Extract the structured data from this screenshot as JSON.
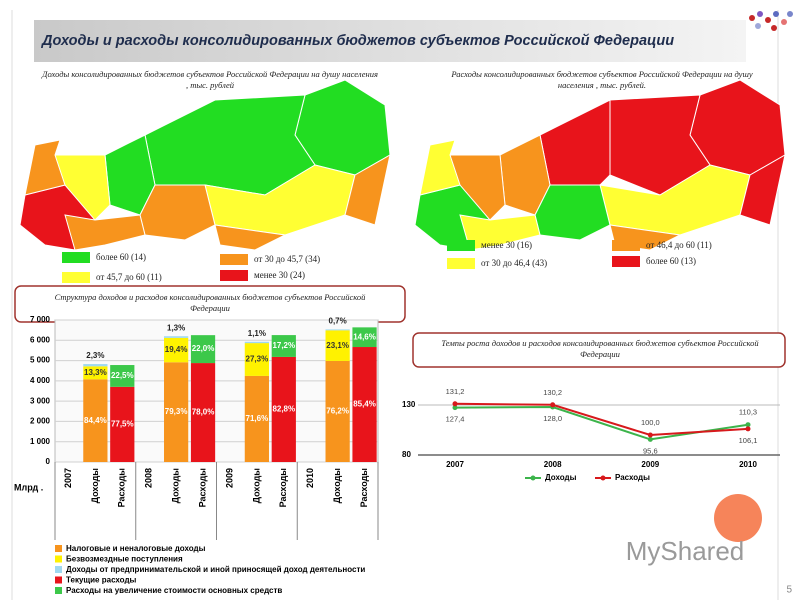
{
  "header": {
    "title": "Доходы и расходы консолидированных бюджетов субъектов Российской Федерации"
  },
  "maps": [
    {
      "title": "Доходы консолидированных бюджетов субъектов Российской Федерации на душу населения , тыс. рублей",
      "legend": [
        {
          "label": "более 60 (14)",
          "color": "#22dd22"
        },
        {
          "label": "от 45,7 до 60 (11)",
          "color": "#ffff33"
        },
        {
          "label": "от 30 до 45,7 (34)",
          "color": "#f7941d"
        },
        {
          "label": "менее 30 (24)",
          "color": "#e8141b"
        }
      ]
    },
    {
      "title": "Расходы консолидированных бюджетов субъектов Российской Федерации на душу населения , тыс. рублей.",
      "legend": [
        {
          "label": "менее 30 (16)",
          "color": "#22dd22"
        },
        {
          "label": "от 30 до 46,4 (43)",
          "color": "#ffff33"
        },
        {
          "label": "от 46,4 до 60 (11)",
          "color": "#f7941d"
        },
        {
          "label": "более 60 (13)",
          "color": "#e8141b"
        }
      ]
    }
  ],
  "panels": {
    "structure_title": "Структура доходов и расходов консолидированных бюджетов субъектов Российской Федерации",
    "growth_title": "Темпы роста доходов и расходов консолидированных бюджетов субъектов Российской Федерации"
  },
  "page_number": "5",
  "watermark": "MyShared",
  "chart_data": [
    {
      "type": "bar",
      "stacked": true,
      "y_label": "Млрд .",
      "groups": [
        "2007",
        "2008",
        "2009",
        "2010"
      ],
      "categories": [
        "Доходы",
        "Расходы",
        "Доходы",
        "Расходы",
        "Доходы",
        "Расходы",
        "Доходы",
        "Расходы"
      ],
      "ylim": [
        0,
        7000
      ],
      "yticks": [
        0,
        {
          "value": 1000,
          "label": "1 000"
        },
        {
          "value": 2000,
          "label": "2 000"
        },
        {
          "value": 3000,
          "label": "3 000"
        },
        {
          "value": 4000,
          "label": "4 000"
        },
        {
          "value": 5000,
          "label": "5 000"
        },
        {
          "value": 6000,
          "label": "6 000"
        },
        {
          "value": 7000,
          "label": "7 000"
        }
      ],
      "grid": true,
      "series": [
        {
          "name": "Налоговые и неналоговые доходы",
          "color": "#f7941d",
          "values": [
            4075,
            null,
            4916,
            null,
            4243,
            null,
            4981,
            null
          ],
          "labels": [
            "84,4%",
            null,
            "79,3%",
            null,
            "71,6%",
            null,
            "76,2%",
            null
          ]
        },
        {
          "name": "Безвозмездные поступления",
          "color": "#fff200",
          "values": [
            642,
            null,
            1203,
            null,
            1618,
            null,
            1510,
            null
          ],
          "labels": [
            "13,3%",
            null,
            "19,4%",
            null,
            "27,3%",
            null,
            "23,1%",
            null
          ]
        },
        {
          "name": "Доходы от предпринимательской и иной приносящей доход деятельности",
          "color": "#9fd8f0",
          "values": [
            111,
            null,
            81,
            null,
            65,
            null,
            46,
            null
          ],
          "labels": [
            "2,3%",
            null,
            "1,3%",
            null,
            "1,1%",
            null,
            "0,7%",
            null
          ]
        },
        {
          "name": "Текущие расходы",
          "color": "#e8141b",
          "values": [
            null,
            3705,
            null,
            4877,
            null,
            5180,
            null,
            5668
          ],
          "labels": [
            null,
            "77,5%",
            null,
            "78,0%",
            null,
            "82,8%",
            null,
            "85,4%"
          ]
        },
        {
          "name": "Расходы на увеличение стоимости основных средств",
          "color": "#3cc84a",
          "values": [
            null,
            1075,
            null,
            1376,
            null,
            1076,
            null,
            969
          ],
          "labels": [
            null,
            "22,5%",
            null,
            "22,0%",
            null,
            "17,2%",
            null,
            "14,6%"
          ]
        }
      ]
    },
    {
      "type": "line",
      "categories": [
        "2007",
        "2008",
        "2009",
        "2010"
      ],
      "ylim": [
        80,
        140
      ],
      "yticks": [
        80,
        130
      ],
      "grid": true,
      "series": [
        {
          "name": "Доходы",
          "color": "#3cb44b",
          "values": [
            127.4,
            128.0,
            95.6,
            110.3
          ],
          "value_labels": [
            "127,4",
            "128,0",
            "95,6",
            "110,3"
          ]
        },
        {
          "name": "Расходы",
          "color": "#d7191c",
          "values": [
            131.2,
            130.2,
            100.0,
            106.1
          ],
          "value_labels": [
            "131,2",
            "130,2",
            "100,0",
            "106,1"
          ]
        }
      ]
    }
  ]
}
